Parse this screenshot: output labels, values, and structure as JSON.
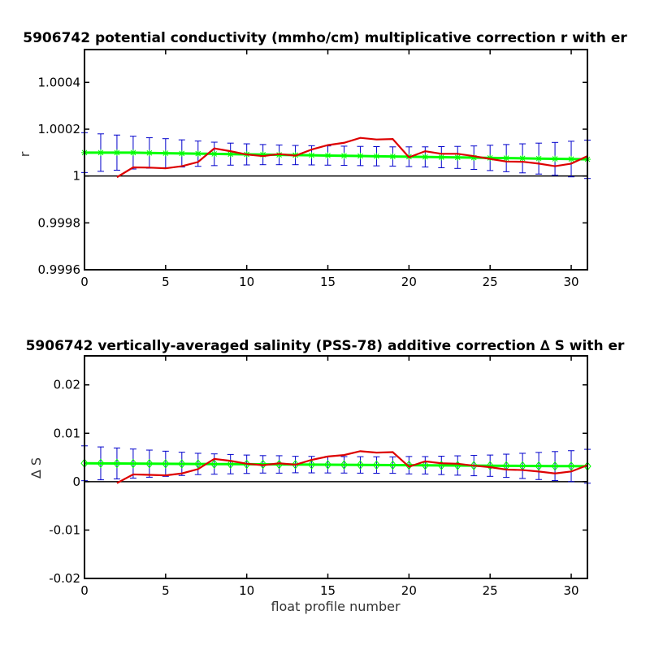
{
  "chart_data": [
    {
      "type": "line",
      "title": "5906742 potential conductivity (mmho/cm) multiplicative correction r with er",
      "xlabel": "",
      "ylabel": "r",
      "xlim": [
        0,
        31
      ],
      "ylim": [
        0.9996,
        1.00054
      ],
      "grid": false,
      "x_ticks": [
        0,
        5,
        10,
        15,
        20,
        25,
        30
      ],
      "x_tick_labels": [
        "0",
        "5",
        "10",
        "15",
        "20",
        "25",
        "30"
      ],
      "y_ticks": [
        0.9996,
        0.9998,
        1.0,
        1.0002,
        1.0004
      ],
      "y_tick_labels": [
        "0.9996",
        "0.9998",
        "1",
        "1.0002",
        "1.0004"
      ],
      "reference_line": 1.0,
      "series": [
        {
          "kind": "errorbar",
          "x": [
            0,
            1,
            2,
            3,
            4,
            5,
            6,
            7,
            8,
            9,
            10,
            11,
            12,
            13,
            14,
            15,
            16,
            17,
            18,
            19,
            20,
            21,
            22,
            23,
            24,
            25,
            26,
            27,
            28,
            29,
            30,
            31
          ],
          "values": [
            1.0001,
            1.0001,
            1.0001,
            1.0001,
            1.0000985,
            1.0000975,
            1.0000965,
            1.0000955,
            1.0000945,
            1.0000935,
            1.0000925,
            1.0000915,
            1.0000905,
            1.0000895,
            1.0000885,
            1.0000875,
            1.0000865,
            1.0000855,
            1.0000845,
            1.0000835,
            1.0000825,
            1.0000815,
            1.0000805,
            1.0000795,
            1.0000785,
            1.0000775,
            1.0000765,
            1.0000755,
            1.0000745,
            1.0000735,
            1.0000725,
            1.0000715
          ],
          "errors": [
            8.5e-05,
            8e-05,
            7.5e-05,
            7e-05,
            6.5e-05,
            6.2e-05,
            5.8e-05,
            5.4e-05,
            5e-05,
            4.7e-05,
            4.5e-05,
            4.3e-05,
            4.2e-05,
            4.1e-05,
            4.1e-05,
            4.1e-05,
            4.1e-05,
            4.1e-05,
            4.1e-05,
            4.1e-05,
            4.2e-05,
            4.3e-05,
            4.5e-05,
            4.7e-05,
            5e-05,
            5.4e-05,
            5.8e-05,
            6.2e-05,
            6.6e-05,
            7e-05,
            7.6e-05,
            8.2e-05
          ],
          "color": "#00ff00",
          "errorbar_color": "#0000cc",
          "marker": "star"
        },
        {
          "kind": "line",
          "x": [
            2,
            3,
            4,
            5,
            6,
            7,
            8,
            9,
            10,
            11,
            12,
            13,
            14,
            15,
            16,
            17,
            18,
            19,
            20,
            21,
            22,
            23,
            24,
            25,
            26,
            27,
            28,
            29,
            30,
            31
          ],
          "values": [
            0.999995,
            1.000037,
            1.000036,
            1.000033,
            1.000042,
            1.00006,
            1.000118,
            1.000106,
            1.000092,
            1.000085,
            1.000094,
            1.000087,
            1.000113,
            1.000132,
            1.000142,
            1.000163,
            1.000156,
            1.000158,
            1.00008,
            1.000106,
            1.000095,
            1.000095,
            1.000085,
            1.000073,
            1.000062,
            1.000061,
            1.000053,
            1.000042,
            1.000053,
            1.000085
          ],
          "color": "#dd0000"
        }
      ]
    },
    {
      "type": "line",
      "title": "5906742 vertically-averaged salinity (PSS-78) additive correction ∆ S with er",
      "xlabel": "float profile number",
      "ylabel": "∆ S",
      "xlim": [
        0,
        31
      ],
      "ylim": [
        -0.02,
        0.026
      ],
      "grid": false,
      "x_ticks": [
        0,
        5,
        10,
        15,
        20,
        25,
        30
      ],
      "x_tick_labels": [
        "0",
        "5",
        "10",
        "15",
        "20",
        "25",
        "30"
      ],
      "y_ticks": [
        -0.02,
        -0.01,
        0,
        0.01,
        0.02
      ],
      "y_tick_labels": [
        "-0.02",
        "-0.01",
        "0",
        "0.01",
        "0.02"
      ],
      "reference_line": 0,
      "series": [
        {
          "kind": "errorbar",
          "x": [
            0,
            1,
            2,
            3,
            4,
            5,
            6,
            7,
            8,
            9,
            10,
            11,
            12,
            13,
            14,
            15,
            16,
            17,
            18,
            19,
            20,
            21,
            22,
            23,
            24,
            25,
            26,
            27,
            28,
            29,
            30,
            31
          ],
          "values": [
            0.0038,
            0.00378,
            0.00376,
            0.00374,
            0.00372,
            0.0037,
            0.00368,
            0.00366,
            0.00364,
            0.00362,
            0.0036,
            0.00358,
            0.00356,
            0.00354,
            0.00352,
            0.0035,
            0.00348,
            0.00346,
            0.00344,
            0.00342,
            0.0034,
            0.00338,
            0.00336,
            0.00334,
            0.00332,
            0.0033,
            0.00328,
            0.00326,
            0.00324,
            0.00322,
            0.0032,
            0.00318
          ],
          "errors": [
            0.0036,
            0.0034,
            0.0032,
            0.003,
            0.0028,
            0.0026,
            0.0024,
            0.0022,
            0.0021,
            0.002,
            0.0019,
            0.0018,
            0.0018,
            0.0017,
            0.0017,
            0.0017,
            0.0017,
            0.0017,
            0.0017,
            0.0017,
            0.0018,
            0.0018,
            0.0019,
            0.002,
            0.0021,
            0.0022,
            0.0024,
            0.0026,
            0.0028,
            0.003,
            0.0032,
            0.0035
          ],
          "color": "#00ff00",
          "errorbar_color": "#0000cc",
          "marker": "diamond"
        },
        {
          "kind": "line",
          "x": [
            2,
            3,
            4,
            5,
            6,
            7,
            8,
            9,
            10,
            11,
            12,
            13,
            14,
            15,
            16,
            17,
            18,
            19,
            20,
            21,
            22,
            23,
            24,
            25,
            26,
            27,
            28,
            29,
            30,
            31
          ],
          "values": [
            -0.0003,
            0.0015,
            0.0014,
            0.0013,
            0.0017,
            0.0026,
            0.0047,
            0.0043,
            0.0037,
            0.0034,
            0.0038,
            0.0035,
            0.0045,
            0.0052,
            0.0055,
            0.0063,
            0.006,
            0.0061,
            0.0031,
            0.0042,
            0.0038,
            0.0037,
            0.0033,
            0.003,
            0.0025,
            0.0024,
            0.0021,
            0.0017,
            0.0021,
            0.0034
          ],
          "color": "#dd0000"
        }
      ]
    }
  ]
}
